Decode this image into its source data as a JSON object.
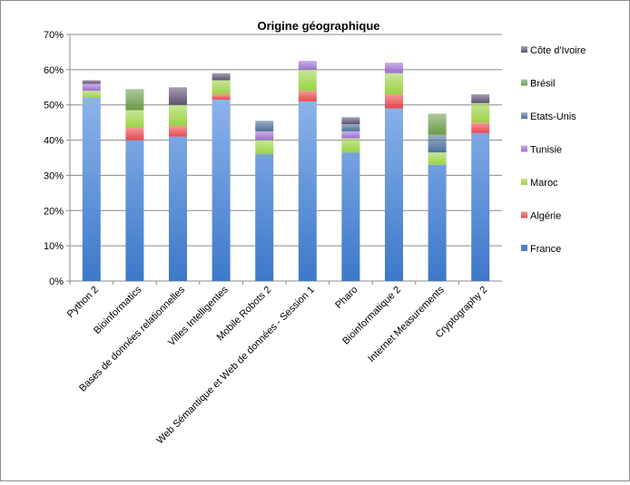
{
  "chart_data": {
    "type": "bar",
    "stacked": true,
    "title": "Origine géographique",
    "xlabel": "",
    "ylabel": "",
    "ylim": [
      0,
      70
    ],
    "y_ticks": [
      "0%",
      "10%",
      "20%",
      "30%",
      "40%",
      "50%",
      "60%",
      "70%"
    ],
    "grid": true,
    "legend_position": "right",
    "categories": [
      "Python 2",
      "Bioinformatics",
      "Bases de données relationnelles",
      "Villes Intelligentes",
      "Mobile Robots 2",
      "Web Sémantique et Web de données - Session 1",
      "Pharo",
      "Bioinformatique 2",
      "Internet Measurements",
      "Cryptography 2"
    ],
    "series": [
      {
        "name": "France",
        "color": "#4f81bd",
        "values": [
          52,
          40,
          41,
          51.5,
          36,
          51,
          36.5,
          49,
          33,
          42
        ]
      },
      {
        "name": "Algérie",
        "color": "#e8474a",
        "values": [
          0,
          3.5,
          3,
          1.5,
          0,
          3,
          0,
          4,
          0,
          3
        ]
      },
      {
        "name": "Maroc",
        "color": "#9bd243",
        "values": [
          2,
          5,
          6,
          4,
          4,
          6,
          4,
          6,
          3.5,
          5.5
        ]
      },
      {
        "name": "Tunisie",
        "color": "#9d6fcf",
        "values": [
          2,
          0,
          0,
          0,
          2.5,
          2.5,
          2,
          3,
          0,
          0
        ]
      },
      {
        "name": "Etats-Unis",
        "color": "#4a6f99",
        "values": [
          0,
          0,
          0,
          0,
          3,
          0,
          2,
          0,
          5,
          0
        ]
      },
      {
        "name": "Brésil",
        "color": "#6c9a49",
        "values": [
          0,
          6,
          0,
          0,
          0,
          0,
          0,
          0,
          6,
          0
        ]
      },
      {
        "name": "Côte d'Ivoire",
        "color": "#5e5070",
        "values": [
          1,
          0,
          5,
          2,
          0,
          0,
          2,
          0,
          0,
          2.5
        ]
      }
    ]
  }
}
